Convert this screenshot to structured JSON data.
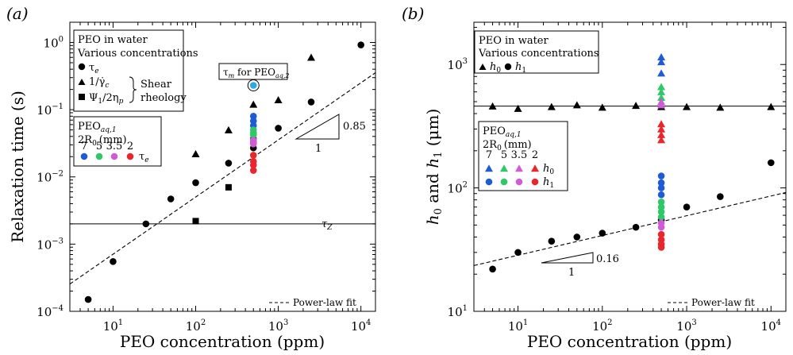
{
  "chart_data": [
    {
      "type": "scatter",
      "panel_label": "(a)",
      "xlabel": "PEO concentration (ppm)",
      "ylabel": "Relaxation time (s)",
      "xscale": "log",
      "yscale": "log",
      "xlim": [
        3,
        15000
      ],
      "ylim": [
        0.0001,
        2
      ],
      "xticks": [
        {
          "v": 10,
          "b": "10",
          "e": "1"
        },
        {
          "v": 100,
          "b": "10",
          "e": "2"
        },
        {
          "v": 1000,
          "b": "10",
          "e": "3"
        },
        {
          "v": 10000,
          "b": "10",
          "e": "4"
        }
      ],
      "yticks": [
        {
          "v": 0.0001,
          "b": "10",
          "e": "−4"
        },
        {
          "v": 0.001,
          "b": "10",
          "e": "−3"
        },
        {
          "v": 0.01,
          "b": "10",
          "e": "−2"
        },
        {
          "v": 0.1,
          "b": "10",
          "e": "−1"
        },
        {
          "v": 1,
          "b": "10",
          "e": "0"
        }
      ],
      "legend_title": [
        "PEO in water",
        "Various concentrations"
      ],
      "legend_tau_e": "τ",
      "legend_tau_e_sub": "e",
      "legend_shear": "1/γ̇",
      "legend_shear_sub": "c",
      "legend_psi": "Ψ",
      "legend_psi_sub": "1",
      "legend_psi_rest": "/2η",
      "legend_psi_sub2": "p",
      "legend_group": [
        "Shear",
        "rheology"
      ],
      "inset_title": "PEO",
      "inset_title_sub": "aq,1",
      "inset_r0": "2R",
      "inset_r0_sub": "0",
      "inset_r0_unit": "(mm)",
      "inset_sizes": [
        "7",
        "5",
        "3.5",
        "2"
      ],
      "inset_colors": [
        "#1f5bd6",
        "#2ec866",
        "#d05bd8",
        "#e8262c"
      ],
      "inset_label": "τ",
      "inset_label_sub": "e",
      "callout": "τ",
      "callout_sub": "m",
      "callout_rest": " for PEO",
      "callout_sub2": "aq,2",
      "tau_z_label": "τ",
      "tau_z_sub": "Z",
      "tau_z_value": 0.002,
      "slope_label": "0.85",
      "slope_run": "1",
      "fit_label": "Power-law fit",
      "fit": {
        "a": 0.0001,
        "exp": 0.85
      },
      "series": [
        {
          "name": "τe",
          "marker": "circle",
          "x": [
            5,
            10,
            25,
            50,
            100,
            250,
            500,
            1000,
            2500,
            10000
          ],
          "y": [
            0.00015,
            0.00055,
            0.002,
            0.0047,
            0.0082,
            0.016,
            0.027,
            0.053,
            0.13,
            0.92
          ]
        },
        {
          "name": "1/γ̇c",
          "marker": "triangle",
          "x": [
            100,
            250,
            500,
            1000,
            2500
          ],
          "y": [
            0.022,
            0.05,
            0.12,
            0.14,
            0.6
          ]
        },
        {
          "name": "Ψ1/2ηp",
          "marker": "square",
          "x": [
            100,
            250,
            500
          ],
          "y": [
            0.0022,
            0.007,
            0.035
          ]
        },
        {
          "name": "7",
          "marker": "circle",
          "color": "#1f5bd6",
          "x": [
            500,
            500,
            500
          ],
          "y": [
            0.08,
            0.068,
            0.058
          ]
        },
        {
          "name": "5",
          "marker": "circle",
          "color": "#2ec866",
          "x": [
            500,
            500,
            500
          ],
          "y": [
            0.05,
            0.045,
            0.042
          ]
        },
        {
          "name": "3.5",
          "marker": "circle",
          "color": "#d05bd8",
          "x": [
            500,
            500
          ],
          "y": [
            0.035,
            0.031
          ]
        },
        {
          "name": "2",
          "marker": "circle",
          "color": "#e8262c",
          "x": [
            500,
            500,
            500,
            500
          ],
          "y": [
            0.021,
            0.017,
            0.015,
            0.0125
          ]
        },
        {
          "name": "τm",
          "marker": "circle",
          "color": "#29a9e6",
          "x": [
            500
          ],
          "y": [
            0.23
          ]
        }
      ]
    },
    {
      "type": "scatter",
      "panel_label": "(b)",
      "xlabel": "PEO concentration (ppm)",
      "ylabel_parts": [
        "h",
        "0",
        " and ",
        "h",
        "1",
        " (μm)"
      ],
      "xscale": "log",
      "yscale": "log",
      "xlim": [
        3,
        15000
      ],
      "ylim": [
        10,
        2200
      ],
      "xticks": [
        {
          "v": 10,
          "b": "10",
          "e": "1"
        },
        {
          "v": 100,
          "b": "10",
          "e": "2"
        },
        {
          "v": 1000,
          "b": "10",
          "e": "3"
        },
        {
          "v": 10000,
          "b": "10",
          "e": "4"
        }
      ],
      "yticks": [
        {
          "v": 10,
          "b": "10",
          "e": "1"
        },
        {
          "v": 100,
          "b": "10",
          "e": "2"
        },
        {
          "v": 1000,
          "b": "10",
          "e": "3"
        }
      ],
      "legend_title": [
        "PEO in water",
        "Various concentrations"
      ],
      "legend_h0": "h",
      "legend_h0_sub": "0",
      "legend_h1": "h",
      "legend_h1_sub": "1",
      "inset_title": "PEO",
      "inset_title_sub": "aq,1",
      "inset_r0": "2R",
      "inset_r0_sub": "0",
      "inset_r0_unit": "(mm)",
      "inset_sizes": [
        "7",
        "5",
        "3.5",
        "2"
      ],
      "inset_colors": [
        "#1f5bd6",
        "#2ec866",
        "#d05bd8",
        "#e8262c"
      ],
      "inset_h0": "h",
      "inset_h0_sub": "0",
      "inset_h1": "h",
      "inset_h1_sub": "1",
      "h0_line": 460,
      "slope_label": "0.16",
      "slope_run": "1",
      "fit_label": "Power-law fit",
      "fit": {
        "a": 19.7,
        "exp": 0.16
      },
      "series": [
        {
          "name": "h0",
          "marker": "triangle",
          "x": [
            5,
            10,
            25,
            50,
            100,
            250,
            500,
            1000,
            2500,
            10000
          ],
          "y": [
            460,
            440,
            455,
            470,
            450,
            465,
            455,
            455,
            450,
            455
          ]
        },
        {
          "name": "h1",
          "marker": "circle",
          "x": [
            5,
            10,
            25,
            50,
            100,
            250,
            500,
            1000,
            2500,
            10000
          ],
          "y": [
            22,
            30,
            37,
            40,
            43,
            48,
            55,
            70,
            85,
            160
          ]
        },
        {
          "name": "h0 7",
          "marker": "triangle",
          "color": "#1f5bd6",
          "x": [
            500,
            500,
            500
          ],
          "y": [
            1150,
            1050,
            850
          ]
        },
        {
          "name": "h0 5",
          "marker": "triangle",
          "color": "#2ec866",
          "x": [
            500,
            500,
            500
          ],
          "y": [
            660,
            600,
            540
          ]
        },
        {
          "name": "h0 3.5",
          "marker": "triangle",
          "color": "#d05bd8",
          "x": [
            500,
            500
          ],
          "y": [
            500,
            470
          ]
        },
        {
          "name": "h0 2",
          "marker": "triangle",
          "color": "#e8262c",
          "x": [
            500,
            500,
            500,
            500
          ],
          "y": [
            330,
            300,
            270,
            245
          ]
        },
        {
          "name": "h1 7",
          "marker": "circle",
          "color": "#1f5bd6",
          "x": [
            500,
            500,
            500,
            500
          ],
          "y": [
            125,
            110,
            100,
            88
          ]
        },
        {
          "name": "h1 5",
          "marker": "circle",
          "color": "#2ec866",
          "x": [
            500,
            500,
            500,
            500
          ],
          "y": [
            77,
            70,
            64,
            58
          ]
        },
        {
          "name": "h1 3.5",
          "marker": "circle",
          "color": "#d05bd8",
          "x": [
            500,
            500
          ],
          "y": [
            52,
            48
          ]
        },
        {
          "name": "h1 2",
          "marker": "circle",
          "color": "#e8262c",
          "x": [
            500,
            500,
            500,
            500
          ],
          "y": [
            42,
            38,
            35,
            33
          ]
        }
      ]
    }
  ]
}
